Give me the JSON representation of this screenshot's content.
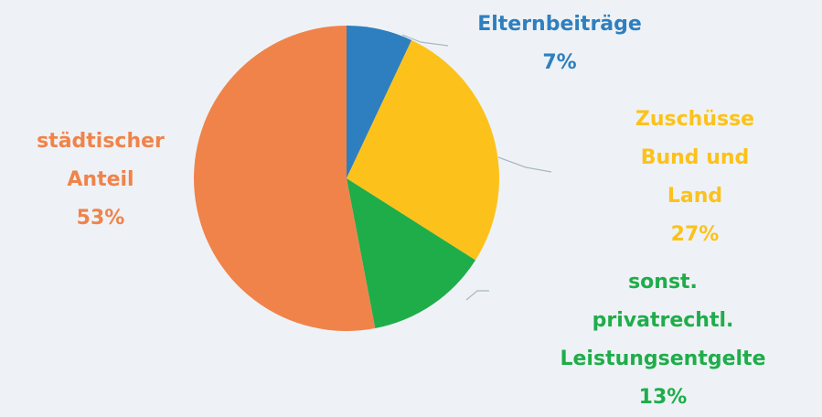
{
  "chart_data": {
    "type": "pie",
    "categories": [
      "Elternbeiträge",
      "Zuschüsse\nBund und Land",
      "sonst. privatrechtl.\nLeistungsentgelte",
      "städtischer\nAnteil"
    ],
    "values": [
      7,
      27,
      13,
      53
    ],
    "value_labels": [
      "7%",
      "27%",
      "13%",
      "53%"
    ],
    "colors": [
      "#2e7fbf",
      "#fcc21b",
      "#1fad4a",
      "#f0834a"
    ]
  }
}
